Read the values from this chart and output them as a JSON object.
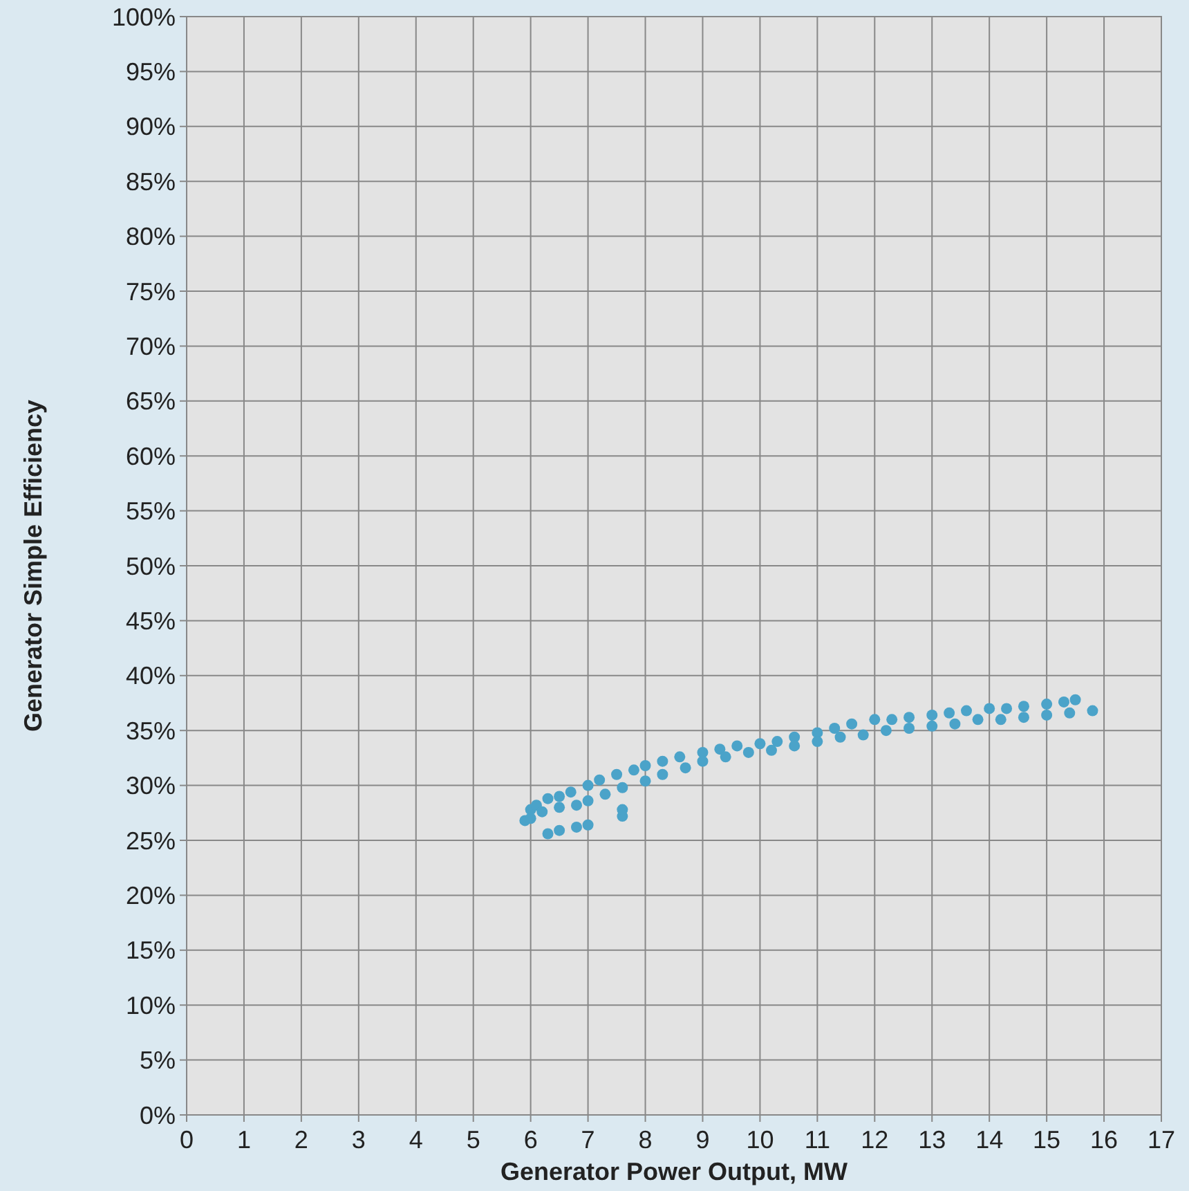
{
  "chart_data": {
    "type": "scatter",
    "xlabel": "Generator Power Output, MW",
    "ylabel": "Generator Simple Efficiency",
    "marker": "circle",
    "grid": true,
    "xlim": [
      0,
      17
    ],
    "xticks": [
      0,
      1,
      2,
      3,
      4,
      5,
      6,
      7,
      8,
      9,
      10,
      11,
      12,
      13,
      14,
      15,
      16,
      17
    ],
    "ylim": [
      0,
      100
    ],
    "yticks": [
      {
        "value": 0,
        "label": "0%"
      },
      {
        "value": 5,
        "label": "5%"
      },
      {
        "value": 10,
        "label": "10%"
      },
      {
        "value": 15,
        "label": "15%"
      },
      {
        "value": 20,
        "label": "20%"
      },
      {
        "value": 25,
        "label": "25%"
      },
      {
        "value": 30,
        "label": "30%"
      },
      {
        "value": 35,
        "label": "35%"
      },
      {
        "value": 40,
        "label": "40%"
      },
      {
        "value": 45,
        "label": "45%"
      },
      {
        "value": 50,
        "label": "50%"
      },
      {
        "value": 55,
        "label": "55%"
      },
      {
        "value": 60,
        "label": "60%"
      },
      {
        "value": 65,
        "label": "65%"
      },
      {
        "value": 70,
        "label": "70%"
      },
      {
        "value": 75,
        "label": "75%"
      },
      {
        "value": 80,
        "label": "80%"
      },
      {
        "value": 85,
        "label": "85%"
      },
      {
        "value": 90,
        "label": "90%"
      },
      {
        "value": 95,
        "label": "95%"
      },
      {
        "value": 100,
        "label": "100%"
      }
    ],
    "series": [
      {
        "color": "#4ba3c9",
        "x": [
          5.9,
          6.0,
          6.1,
          6.3,
          6.5,
          6.7,
          7.0,
          7.2,
          7.5,
          7.8,
          8.0,
          8.3,
          8.6,
          9.0,
          9.3,
          9.6,
          10.0,
          10.3,
          10.6,
          11.0,
          11.3,
          11.6,
          12.0,
          12.3,
          12.6,
          13.0,
          13.3,
          13.6,
          14.0,
          14.3,
          14.6,
          15.0,
          15.3,
          15.5,
          6.0,
          6.2,
          6.5,
          6.8,
          7.0,
          7.3,
          7.6,
          8.0,
          8.3,
          8.7,
          9.0,
          9.4,
          9.8,
          10.2,
          10.6,
          11.0,
          11.4,
          11.8,
          12.2,
          12.6,
          13.0,
          13.4,
          13.8,
          14.2,
          14.6,
          15.0,
          15.4,
          15.8,
          6.3,
          6.5,
          6.8,
          7.0,
          7.6,
          7.6
        ],
        "values": [
          26.8,
          27.8,
          28.2,
          28.8,
          29.0,
          29.4,
          30.0,
          30.5,
          31.0,
          31.4,
          31.8,
          32.2,
          32.6,
          33.0,
          33.3,
          33.6,
          33.8,
          34.0,
          34.4,
          34.8,
          35.2,
          35.6,
          36.0,
          36.0,
          36.2,
          36.4,
          36.6,
          36.8,
          37.0,
          37.0,
          37.2,
          37.4,
          37.6,
          37.8,
          27.0,
          27.6,
          28.0,
          28.2,
          28.6,
          29.2,
          29.8,
          30.4,
          31.0,
          31.6,
          32.2,
          32.6,
          33.0,
          33.2,
          33.6,
          34.0,
          34.4,
          34.6,
          35.0,
          35.2,
          35.4,
          35.6,
          36.0,
          36.0,
          36.2,
          36.4,
          36.6,
          36.8,
          25.6,
          25.9,
          26.2,
          26.4,
          27.2,
          27.8
        ]
      }
    ]
  }
}
